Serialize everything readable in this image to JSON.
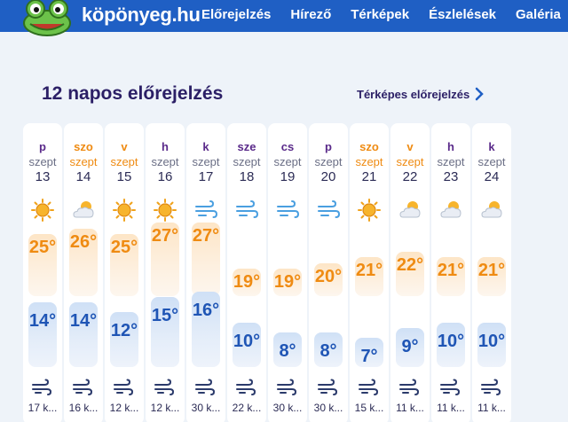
{
  "site": {
    "name": "köpönyeg.hu"
  },
  "nav": [
    "Előrejelzés",
    "Hírező",
    "Térképek",
    "Észlelések",
    "Galéria"
  ],
  "section": {
    "title": "12 napos előrejelzés",
    "map_link": "Térképes előrejelzés"
  },
  "colors": {
    "brand": "#1f5fc4",
    "weekday": "#5a2a8a",
    "weekend": "#ef8b12",
    "high": "#ef8b12",
    "low": "#1f55b5"
  },
  "days": [
    {
      "name": "p",
      "month": "szept",
      "date": "13",
      "icon": "sun-icon",
      "high": "25°",
      "low": "14°",
      "wind": "17 k...",
      "weekend": false
    },
    {
      "name": "szo",
      "month": "szept",
      "date": "14",
      "icon": "partly-cloudy-icon",
      "high": "26°",
      "low": "14°",
      "wind": "16 k...",
      "weekend": true
    },
    {
      "name": "v",
      "month": "szept",
      "date": "15",
      "icon": "sun-icon",
      "high": "25°",
      "low": "12°",
      "wind": "12 k...",
      "weekend": true
    },
    {
      "name": "h",
      "month": "szept",
      "date": "16",
      "icon": "sun-icon",
      "high": "27°",
      "low": "15°",
      "wind": "12 k...",
      "weekend": false
    },
    {
      "name": "k",
      "month": "szept",
      "date": "17",
      "icon": "wind-icon",
      "high": "27°",
      "low": "16°",
      "wind": "30 k...",
      "weekend": false
    },
    {
      "name": "sze",
      "month": "szept",
      "date": "18",
      "icon": "wind-icon",
      "high": "19°",
      "low": "10°",
      "wind": "22 k...",
      "weekend": false
    },
    {
      "name": "cs",
      "month": "szept",
      "date": "19",
      "icon": "wind-icon",
      "high": "19°",
      "low": "8°",
      "wind": "30 k...",
      "weekend": false
    },
    {
      "name": "p",
      "month": "szept",
      "date": "20",
      "icon": "wind-icon",
      "high": "20°",
      "low": "8°",
      "wind": "30 k...",
      "weekend": false
    },
    {
      "name": "szo",
      "month": "szept",
      "date": "21",
      "icon": "sun-icon",
      "high": "21°",
      "low": "7°",
      "wind": "15 k...",
      "weekend": true
    },
    {
      "name": "v",
      "month": "szept",
      "date": "22",
      "icon": "partly-cloudy-icon",
      "high": "22°",
      "low": "9°",
      "wind": "11 k...",
      "weekend": true
    },
    {
      "name": "h",
      "month": "szept",
      "date": "23",
      "icon": "partly-cloudy-icon",
      "high": "21°",
      "low": "10°",
      "wind": "11 k...",
      "weekend": false
    },
    {
      "name": "k",
      "month": "szept",
      "date": "24",
      "icon": "partly-cloudy-icon",
      "high": "21°",
      "low": "10°",
      "wind": "11 k...",
      "weekend": false
    }
  ]
}
